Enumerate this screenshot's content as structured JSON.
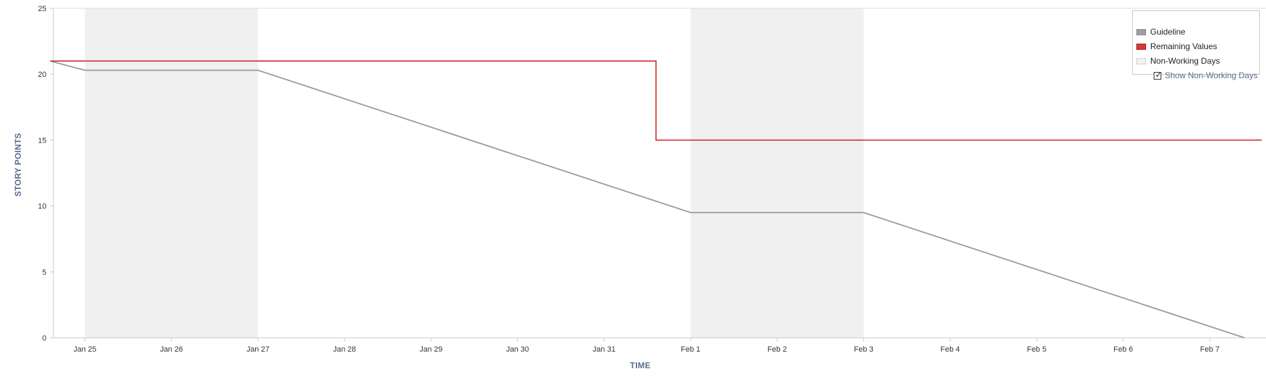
{
  "chart_data": {
    "type": "line",
    "title": "",
    "xlabel": "TIME",
    "ylabel": "STORY POINTS",
    "ylim": [
      0,
      25
    ],
    "y_ticks": [
      "0",
      "5",
      "10",
      "15",
      "20",
      "25"
    ],
    "x_tick_labels": [
      "Jan 25",
      "Jan 26",
      "Jan 27",
      "Jan 28",
      "Jan 29",
      "Jan 30",
      "Jan 31",
      "Feb 1",
      "Feb 2",
      "Feb 3",
      "Feb 4",
      "Feb 5",
      "Feb 6",
      "Feb 7"
    ],
    "x_range_days": [
      -0.4,
      13.6
    ],
    "non_working_days": [
      [
        0,
        2
      ],
      [
        7,
        9
      ]
    ],
    "series": [
      {
        "name": "Guideline",
        "color": "#999999",
        "points": [
          [
            -0.4,
            21
          ],
          [
            0,
            20.3
          ],
          [
            2,
            20.3
          ],
          [
            7,
            9.5
          ],
          [
            9,
            9.5
          ],
          [
            13.4,
            0
          ]
        ]
      },
      {
        "name": "Remaining Values",
        "color": "#d0292c",
        "step": true,
        "points": [
          [
            -0.4,
            21
          ],
          [
            6.6,
            21
          ],
          [
            6.6,
            15
          ],
          [
            13.6,
            15
          ]
        ]
      }
    ],
    "grid": false,
    "legend_position": "top-right"
  },
  "legend": {
    "items": [
      {
        "label": "Guideline",
        "swatch_color": "#a0a0a0",
        "swatch_border": "#8a8a8a"
      },
      {
        "label": "Remaining Values",
        "swatch_color": "#d33b3b",
        "swatch_border": "#b02020"
      },
      {
        "label": "Non-Working Days",
        "swatch_color": "#f2f2f2",
        "swatch_border": "#cfcfcf"
      }
    ],
    "show_non_working_days": {
      "label": "Show Non-Working Days",
      "checked": true,
      "check_glyph": "✓"
    }
  }
}
